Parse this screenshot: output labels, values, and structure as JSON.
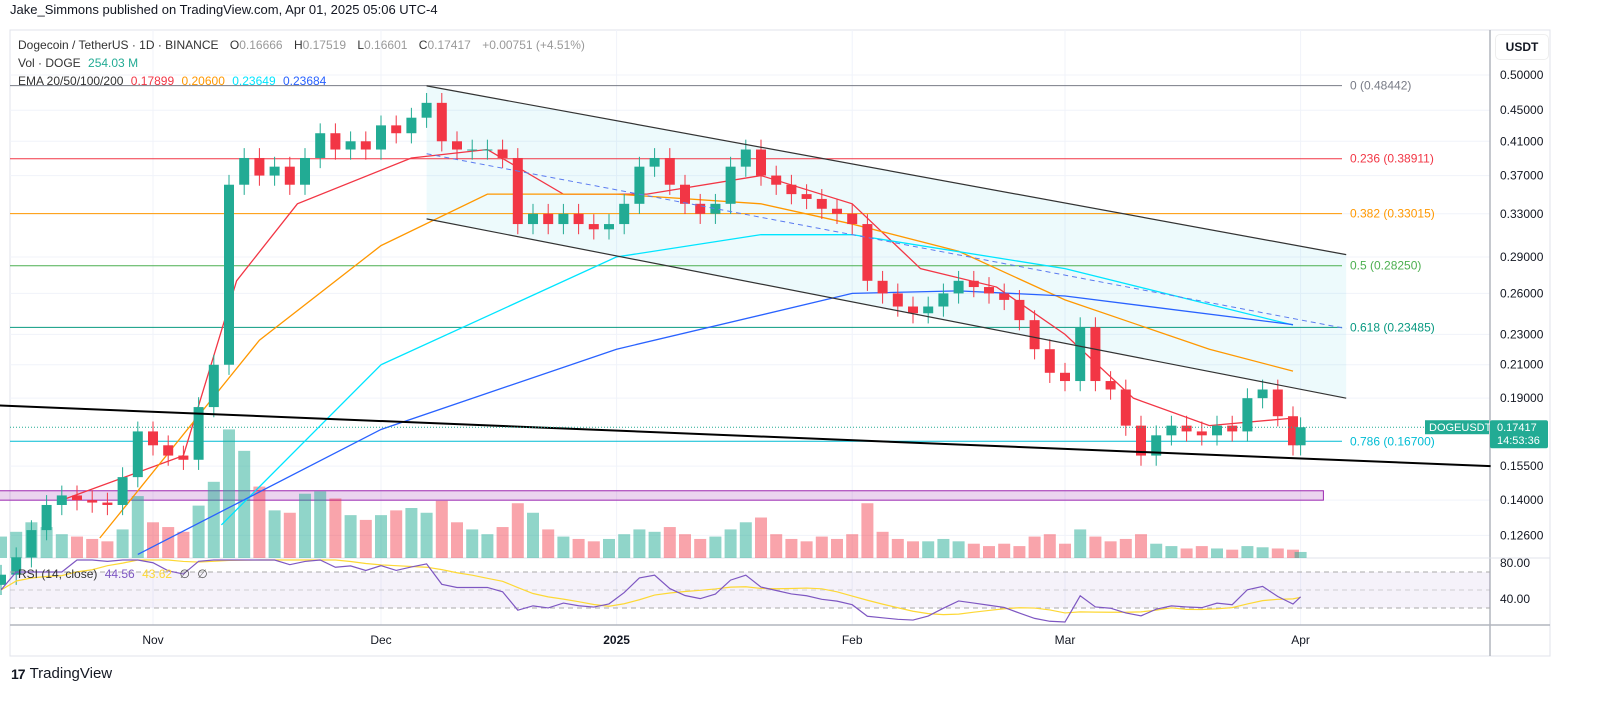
{
  "publisher_line": "Jake_Simmons published on TradingView.com, Apr 01, 2025 05:06 UTC-4",
  "legend": {
    "symbol": "Dogecoin / TetherUS · 1D · BINANCE",
    "o_label": "O",
    "o": "0.16666",
    "h_label": "H",
    "h": "0.17519",
    "l_label": "L",
    "l": "0.16601",
    "c_label": "C",
    "c": "0.17417",
    "change": "+0.00751 (+4.51%)",
    "vol_label": "Vol · DOGE",
    "vol": "254.03 M",
    "ema_label": "EMA 20/50/100/200",
    "ema_values": [
      "0.17899",
      "0.20600",
      "0.23649",
      "0.23684"
    ],
    "ema_colors": [
      "#f23645",
      "#ff9800",
      "#00e5ff",
      "#2962ff"
    ]
  },
  "currency": "USDT",
  "logo": "TradingView",
  "colors": {
    "up": "#22ab94",
    "down": "#f23645",
    "rsi": "#7e57c2",
    "rsi_ma": "#fdd835"
  },
  "chart_data": {
    "type": "candlestick",
    "scale": "log",
    "ylim": [
      0.118,
      0.52
    ],
    "price_ticks": [
      "0.50000",
      "0.45000",
      "0.41000",
      "0.37000",
      "0.33000",
      "0.29000",
      "0.26000",
      "0.23000",
      "0.21000",
      "0.19000",
      "0.15500",
      "0.14000",
      "0.12600"
    ],
    "time_ticks": [
      {
        "label": "Nov",
        "date": "2024-11-01"
      },
      {
        "label": "Dec",
        "date": "2024-12-01"
      },
      {
        "label": "2025",
        "date": "2025-01-01",
        "bold": true
      },
      {
        "label": "Feb",
        "date": "2025-02-01"
      },
      {
        "label": "Mar",
        "date": "2025-03-01"
      },
      {
        "label": "Apr",
        "date": "2025-04-01"
      }
    ],
    "candles": [
      [
        "2024-10-12",
        0.112,
        900
      ],
      [
        "2024-10-14",
        0.118,
        1100
      ],
      [
        "2024-10-16",
        0.128,
        1500
      ],
      [
        "2024-10-18",
        0.138,
        1300
      ],
      [
        "2024-10-20",
        0.142,
        1000
      ],
      [
        "2024-10-22",
        0.14,
        900
      ],
      [
        "2024-10-24",
        0.139,
        800
      ],
      [
        "2024-10-26",
        0.138,
        700
      ],
      [
        "2024-10-28",
        0.15,
        1200
      ],
      [
        "2024-10-30",
        0.172,
        2600
      ],
      [
        "2024-11-01",
        0.165,
        1500
      ],
      [
        "2024-11-03",
        0.16,
        1300
      ],
      [
        "2024-11-05",
        0.158,
        1100
      ],
      [
        "2024-11-07",
        0.185,
        2200
      ],
      [
        "2024-11-09",
        0.21,
        3200
      ],
      [
        "2024-11-11",
        0.36,
        5400
      ],
      [
        "2024-11-13",
        0.39,
        4500
      ],
      [
        "2024-11-15",
        0.37,
        3000
      ],
      [
        "2024-11-17",
        0.38,
        2000
      ],
      [
        "2024-11-19",
        0.36,
        1900
      ],
      [
        "2024-11-21",
        0.39,
        2700
      ],
      [
        "2024-11-23",
        0.42,
        2800
      ],
      [
        "2024-11-25",
        0.4,
        2500
      ],
      [
        "2024-11-27",
        0.41,
        1800
      ],
      [
        "2024-11-29",
        0.4,
        1600
      ],
      [
        "2024-12-01",
        0.43,
        1800
      ],
      [
        "2024-12-03",
        0.42,
        2000
      ],
      [
        "2024-12-05",
        0.44,
        2100
      ],
      [
        "2024-12-07",
        0.46,
        1900
      ],
      [
        "2024-12-09",
        0.41,
        2400
      ],
      [
        "2024-12-11",
        0.4,
        1500
      ],
      [
        "2024-12-13",
        0.4,
        1200
      ],
      [
        "2024-12-15",
        0.4,
        1000
      ],
      [
        "2024-12-17",
        0.39,
        1300
      ],
      [
        "2024-12-19",
        0.32,
        2300
      ],
      [
        "2024-12-21",
        0.33,
        1900
      ],
      [
        "2024-12-23",
        0.32,
        1200
      ],
      [
        "2024-12-25",
        0.33,
        900
      ],
      [
        "2024-12-27",
        0.32,
        800
      ],
      [
        "2024-12-29",
        0.315,
        700
      ],
      [
        "2024-12-31",
        0.32,
        800
      ],
      [
        "2025-01-02",
        0.34,
        1000
      ],
      [
        "2025-01-04",
        0.38,
        1200
      ],
      [
        "2025-01-06",
        0.39,
        1100
      ],
      [
        "2025-01-08",
        0.36,
        1300
      ],
      [
        "2025-01-10",
        0.34,
        1000
      ],
      [
        "2025-01-12",
        0.33,
        800
      ],
      [
        "2025-01-14",
        0.34,
        900
      ],
      [
        "2025-01-16",
        0.38,
        1200
      ],
      [
        "2025-01-18",
        0.4,
        1500
      ],
      [
        "2025-01-20",
        0.37,
        1700
      ],
      [
        "2025-01-22",
        0.36,
        1000
      ],
      [
        "2025-01-24",
        0.35,
        800
      ],
      [
        "2025-01-26",
        0.345,
        700
      ],
      [
        "2025-01-28",
        0.335,
        900
      ],
      [
        "2025-01-30",
        0.33,
        800
      ],
      [
        "2025-02-01",
        0.32,
        1000
      ],
      [
        "2025-02-03",
        0.27,
        2300
      ],
      [
        "2025-02-05",
        0.26,
        1100
      ],
      [
        "2025-02-07",
        0.25,
        800
      ],
      [
        "2025-02-09",
        0.245,
        700
      ],
      [
        "2025-02-11",
        0.25,
        700
      ],
      [
        "2025-02-13",
        0.26,
        800
      ],
      [
        "2025-02-15",
        0.27,
        700
      ],
      [
        "2025-02-17",
        0.265,
        600
      ],
      [
        "2025-02-19",
        0.26,
        500
      ],
      [
        "2025-02-21",
        0.255,
        600
      ],
      [
        "2025-02-23",
        0.24,
        500
      ],
      [
        "2025-02-25",
        0.22,
        900
      ],
      [
        "2025-02-27",
        0.205,
        1000
      ],
      [
        "2025-03-01",
        0.2,
        600
      ],
      [
        "2025-03-03",
        0.235,
        1200
      ],
      [
        "2025-03-05",
        0.2,
        900
      ],
      [
        "2025-03-07",
        0.195,
        700
      ],
      [
        "2025-03-09",
        0.175,
        800
      ],
      [
        "2025-03-11",
        0.16,
        1000
      ],
      [
        "2025-03-13",
        0.17,
        600
      ],
      [
        "2025-03-15",
        0.175,
        500
      ],
      [
        "2025-03-17",
        0.172,
        400
      ],
      [
        "2025-03-19",
        0.17,
        500
      ],
      [
        "2025-03-21",
        0.175,
        400
      ],
      [
        "2025-03-23",
        0.172,
        350
      ],
      [
        "2025-03-25",
        0.19,
        500
      ],
      [
        "2025-03-27",
        0.195,
        450
      ],
      [
        "2025-03-29",
        0.18,
        400
      ],
      [
        "2025-03-31",
        0.165,
        350
      ],
      [
        "2025-04-01",
        0.17417,
        254
      ]
    ],
    "ema": [
      {
        "label": "EMA 20",
        "color": "#f23645",
        "points": [
          [
            "2024-10-20",
            0.14
          ],
          [
            "2024-11-05",
            0.16
          ],
          [
            "2024-11-12",
            0.27
          ],
          [
            "2024-11-20",
            0.34
          ],
          [
            "2024-12-05",
            0.39
          ],
          [
            "2024-12-15",
            0.4
          ],
          [
            "2024-12-25",
            0.35
          ],
          [
            "2025-01-05",
            0.35
          ],
          [
            "2025-01-20",
            0.37
          ],
          [
            "2025-02-01",
            0.34
          ],
          [
            "2025-02-10",
            0.28
          ],
          [
            "2025-02-20",
            0.265
          ],
          [
            "2025-03-01",
            0.23
          ],
          [
            "2025-03-10",
            0.19
          ],
          [
            "2025-03-20",
            0.175
          ],
          [
            "2025-03-31",
            0.179
          ]
        ]
      },
      {
        "label": "EMA 50",
        "color": "#ff9800",
        "points": [
          [
            "2024-10-25",
            0.125
          ],
          [
            "2024-11-15",
            0.226
          ],
          [
            "2024-12-01",
            0.3
          ],
          [
            "2024-12-15",
            0.35
          ],
          [
            "2025-01-01",
            0.35
          ],
          [
            "2025-01-20",
            0.34
          ],
          [
            "2025-02-01",
            0.32
          ],
          [
            "2025-02-15",
            0.295
          ],
          [
            "2025-03-01",
            0.255
          ],
          [
            "2025-03-20",
            0.22
          ],
          [
            "2025-03-31",
            0.206
          ]
        ]
      },
      {
        "label": "EMA 100",
        "color": "#00e5ff",
        "points": [
          [
            "2024-11-10",
            0.13
          ],
          [
            "2024-12-01",
            0.21
          ],
          [
            "2025-01-01",
            0.29
          ],
          [
            "2025-01-20",
            0.31
          ],
          [
            "2025-02-01",
            0.31
          ],
          [
            "2025-03-01",
            0.28
          ],
          [
            "2025-03-31",
            0.2365
          ]
        ]
      },
      {
        "label": "EMA 200",
        "color": "#2962ff",
        "points": [
          [
            "2024-10-30",
            0.119
          ],
          [
            "2024-12-01",
            0.173
          ],
          [
            "2025-01-01",
            0.22
          ],
          [
            "2025-02-01",
            0.26
          ],
          [
            "2025-02-15",
            0.262
          ],
          [
            "2025-03-01",
            0.258
          ],
          [
            "2025-03-31",
            0.2368
          ]
        ]
      }
    ],
    "fib_levels": [
      {
        "ratio": "0",
        "price": 0.48442,
        "label": "0 (0.48442)",
        "color": "#787b86"
      },
      {
        "ratio": "0.236",
        "price": 0.38911,
        "label": "0.236 (0.38911)",
        "color": "#f23645"
      },
      {
        "ratio": "0.382",
        "price": 0.33015,
        "label": "0.382 (0.33015)",
        "color": "#ff9800"
      },
      {
        "ratio": "0.5",
        "price": 0.2825,
        "label": "0.5 (0.28250)",
        "color": "#4caf50"
      },
      {
        "ratio": "0.618",
        "price": 0.23485,
        "label": "0.618 (0.23485)",
        "color": "#089981"
      },
      {
        "ratio": "0.786",
        "price": 0.167,
        "label": "0.786 (0.16700)",
        "color": "#00bcd4"
      }
    ],
    "channel": {
      "upper": [
        [
          "2024-12-07",
          0.484
        ],
        [
          "2025-04-07",
          0.292
        ]
      ],
      "lower": [
        [
          "2024-12-07",
          0.325
        ],
        [
          "2025-04-07",
          0.19
        ]
      ],
      "mid": [
        [
          "2024-12-07",
          0.395
        ],
        [
          "2025-04-07",
          0.234
        ]
      ]
    },
    "trendline": [
      [
        "2024-10-11",
        0.186
      ],
      [
        "2025-04-26",
        0.155
      ]
    ],
    "support_zone": {
      "from": "2024-10-11",
      "to": "2025-04-04",
      "low": 0.14,
      "high": 0.144
    },
    "last_price": {
      "symbol": "DOGEUSDT",
      "price": "0.17417",
      "countdown": "14:53:36"
    },
    "rsi": {
      "label": "RSI (14, close)",
      "value": "44.56",
      "ma_value": "43.62",
      "extra": [
        "∅",
        "∅"
      ],
      "ticks": [
        "80.00",
        "40.00"
      ],
      "bands": [
        70,
        50,
        30
      ]
    }
  }
}
